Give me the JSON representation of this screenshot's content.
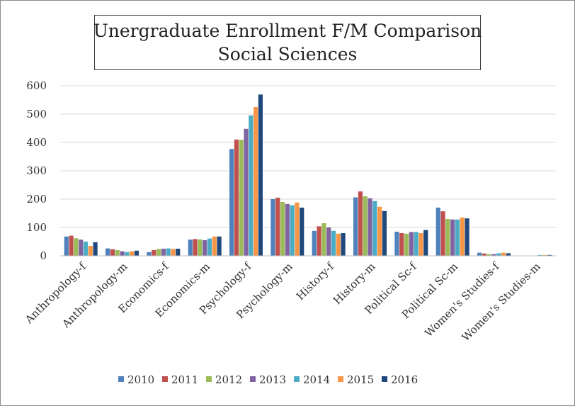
{
  "chart_data": {
    "type": "bar",
    "title": "Unergraduate Enrollment F/M Comparison",
    "subtitle": "Social Sciences",
    "xlabel": "",
    "ylabel": "",
    "ylim": [
      0,
      600
    ],
    "yticks": [
      "0",
      "100",
      "200",
      "300",
      "400",
      "500",
      "600"
    ],
    "grid": true,
    "legend_position": "bottom",
    "categories": [
      "Anthropology-f",
      "Anthropology-m",
      "Economics-f",
      "Economics-m",
      "Psychology-f",
      "Psychology-m",
      "History-f",
      "History-m",
      "Political Sc-f",
      "Political Sc-m",
      "Women's Studies-f",
      "Women's Studies-m"
    ],
    "series": [
      {
        "name": "2010",
        "color": "#4f81bd",
        "values": [
          68,
          26,
          13,
          57,
          377,
          200,
          88,
          206,
          85,
          170,
          11,
          0
        ]
      },
      {
        "name": "2011",
        "color": "#c0504d",
        "values": [
          71,
          23,
          20,
          59,
          410,
          205,
          104,
          227,
          80,
          157,
          8,
          0
        ]
      },
      {
        "name": "2012",
        "color": "#9bbb59",
        "values": [
          62,
          20,
          24,
          58,
          409,
          190,
          115,
          210,
          78,
          130,
          6,
          0
        ]
      },
      {
        "name": "2013",
        "color": "#8064a2",
        "values": [
          57,
          16,
          25,
          55,
          448,
          183,
          100,
          203,
          84,
          128,
          6,
          0
        ]
      },
      {
        "name": "2014",
        "color": "#4bacc6",
        "values": [
          50,
          13,
          26,
          61,
          495,
          178,
          88,
          193,
          84,
          128,
          9,
          3
        ]
      },
      {
        "name": "2015",
        "color": "#f79646",
        "values": [
          35,
          16,
          24,
          68,
          525,
          188,
          78,
          173,
          80,
          135,
          11,
          3
        ]
      },
      {
        "name": "2016",
        "color": "#1f497d",
        "values": [
          48,
          18,
          25,
          68,
          569,
          170,
          80,
          158,
          91,
          132,
          9,
          3
        ]
      }
    ]
  }
}
